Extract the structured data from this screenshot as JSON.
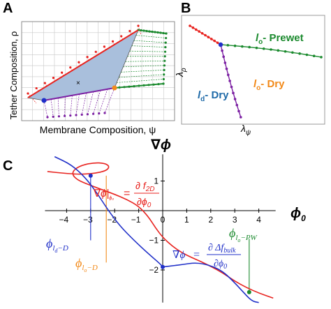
{
  "panels": {
    "a": {
      "letter": "A",
      "ylabel": "Tether Composition, ρ",
      "xlabel": "Membrane Composition, ψ"
    },
    "b": {
      "letter": "B",
      "ylabel_base": "λ",
      "ylabel_sub": "ρ",
      "xlabel_base": "λ",
      "xlabel_sub": "ψ",
      "labels": {
        "prewet": {
          "italic": "l",
          "sub": "o",
          "text": "- Prewet"
        },
        "dry_o": {
          "italic": "l",
          "sub": "o",
          "text": "- Dry"
        },
        "dry_d": {
          "italic": "l",
          "sub": "d",
          "text": "- Dry"
        }
      }
    },
    "c": {
      "letter": "C",
      "ylabel": "∇ϕ",
      "xlabel": "ϕ",
      "xlabel_sub": "0",
      "eq_red": {
        "lhs": "∇ϕ|",
        "lhs_sub": "ϕ₀",
        "eq": "=",
        "num": "∂ f",
        "num_sub": "2D",
        "den": "∂ϕ",
        "den_sub": "0"
      },
      "eq_blue": {
        "lhs": "∇ϕ",
        "eq": "=",
        "num": "∂ Δf",
        "num_sub": "bulk",
        "den": "∂ϕ",
        "den_sub": "0"
      },
      "annotations": {
        "ld": {
          "base": "ϕ",
          "sub": "l",
          "subsub": "d",
          "tail": "−D"
        },
        "lo_d": {
          "base": "ϕ",
          "sub": "l",
          "subsub": "o",
          "tail": "−D"
        },
        "lo_pw": {
          "base": "ϕ",
          "sub": "l",
          "subsub": "o",
          "tail": "−PW"
        }
      }
    }
  },
  "colors": {
    "red": "#e8231f",
    "green": "#1b8a2e",
    "purple": "#7b1fa2",
    "blue": "#1f2fc8",
    "orange": "#f28a1a",
    "fill": "#a9bfdc",
    "grid": "#c8c8c8"
  },
  "chart_data": {
    "type": "line",
    "xlabel": "ϕ0",
    "ylabel": "∇ϕ",
    "xticks": [
      -4,
      -3,
      -2,
      -1,
      0,
      1,
      2,
      3,
      4
    ],
    "yticks": [
      -2,
      -1,
      1
    ],
    "xlim": [
      -4.9,
      4.7
    ],
    "ylim": [
      -3.1,
      1.9
    ],
    "series": [
      {
        "name": "∂f2D/∂ϕ0",
        "color": "#e8231f",
        "x": [
          -4.8,
          -4.0,
          -3.2,
          -2.4,
          -2.2,
          -2.4,
          -2.9,
          -3.5,
          -3.8,
          -3.6,
          -3.0,
          -2.5,
          -2.0,
          -1.5,
          -1.0,
          -0.6,
          -0.3,
          0.0,
          0.4,
          0.8,
          1.2,
          1.6,
          2.0,
          2.5,
          3.0,
          3.5,
          4.0,
          4.6
        ],
        "y": [
          1.32,
          1.25,
          1.22,
          1.32,
          1.48,
          1.6,
          1.62,
          1.5,
          1.28,
          1.05,
          0.85,
          0.7,
          0.55,
          0.38,
          0.15,
          -0.2,
          -0.58,
          -0.9,
          -1.2,
          -1.42,
          -1.58,
          -1.72,
          -1.88,
          -2.1,
          -2.38,
          -2.6,
          -2.78,
          -2.95
        ]
      },
      {
        "name": "∂Δfbulk/∂ϕ0",
        "color": "#1f2fc8",
        "x": [
          -4.5,
          -3.8,
          -3.2,
          -2.7,
          -2.3,
          -1.8,
          -1.2,
          -0.6,
          -0.1,
          0.0,
          0.2,
          0.8,
          1.4,
          2.0,
          2.5,
          2.9,
          3.3,
          3.7,
          4.0
        ],
        "y": [
          1.82,
          1.55,
          1.1,
          0.55,
          0.05,
          -0.5,
          -1.0,
          -1.45,
          -1.8,
          -1.9,
          -1.88,
          -1.82,
          -1.75,
          -1.85,
          -2.05,
          -2.35,
          -2.7,
          -3.05,
          -3.1
        ]
      }
    ],
    "markers": [
      {
        "x": -3.0,
        "y": 1.18,
        "color": "#1f2fc8"
      },
      {
        "x": 0.0,
        "y": -1.9,
        "color": "#1f2fc8"
      },
      {
        "x": 3.6,
        "y": -2.75,
        "color": "#1b8a2e"
      }
    ],
    "verticals": [
      {
        "x": -3.0,
        "color": "#1f2fc8"
      },
      {
        "x": -2.35,
        "color": "#f28a1a"
      },
      {
        "x": 3.6,
        "color": "#1b8a2e"
      }
    ]
  }
}
